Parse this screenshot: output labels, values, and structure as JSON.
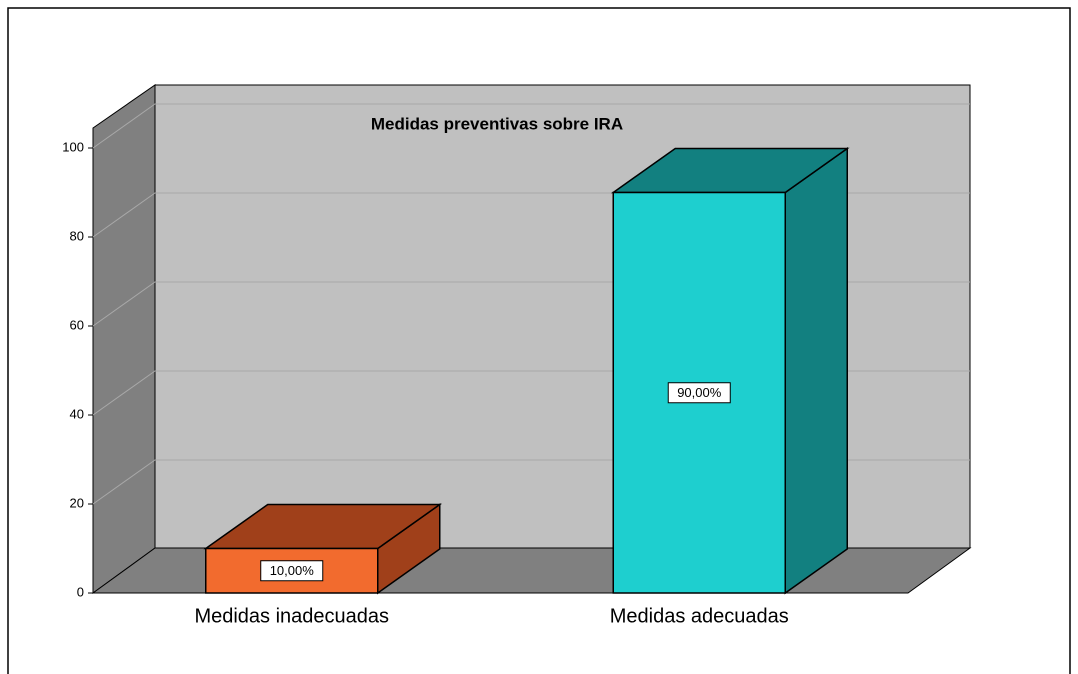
{
  "chart_data": {
    "type": "bar3d",
    "title": "Medidas preventivas sobre IRA",
    "categories": [
      "Medidas inadecuadas",
      "Medidas adecuadas"
    ],
    "values": [
      10,
      90
    ],
    "value_labels": [
      "10,00%",
      "90,00%"
    ],
    "colors": [
      "#f26b2e",
      "#1ecfcf"
    ],
    "side_colors": [
      "#a0401a",
      "#128080"
    ],
    "ylim": [
      0,
      100
    ],
    "yticks": [
      0,
      20,
      40,
      60,
      80,
      100
    ],
    "grid": true
  }
}
